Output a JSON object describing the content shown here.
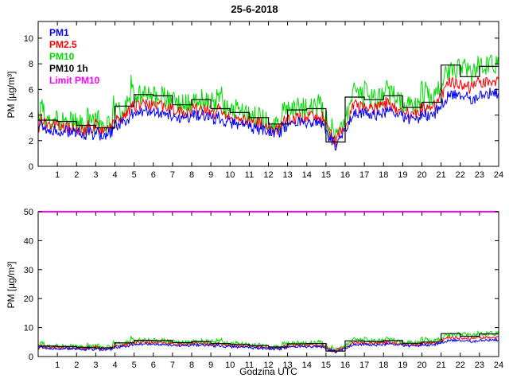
{
  "chart_data": {
    "type": "line",
    "title": "25-6-2018",
    "xlabel": "Godzina UTC",
    "ylabel": "PM [µg/m³]",
    "x_range": [
      0,
      24
    ],
    "x_ticks": [
      1,
      2,
      3,
      4,
      5,
      6,
      7,
      8,
      9,
      10,
      11,
      12,
      13,
      14,
      15,
      16,
      17,
      18,
      19,
      20,
      21,
      22,
      23,
      24
    ],
    "grid": false,
    "legend_position": "top-left-inside",
    "legend": [
      {
        "name": "PM1",
        "color": "#0000ff"
      },
      {
        "name": "PM2.5",
        "color": "#ff0000"
      },
      {
        "name": "PM10",
        "color": "#00dd00"
      },
      {
        "name": "PM10 1h",
        "color": "#000000"
      },
      {
        "name": "Limit PM10",
        "color": "#ff00ff"
      }
    ],
    "limit": {
      "name": "Limit PM10",
      "color": "#ff00ff",
      "value": 50
    },
    "subplots": [
      {
        "name": "top",
        "ylim": [
          0,
          11.3
        ],
        "yticks": [
          0,
          2,
          4,
          6,
          8,
          10
        ],
        "show_xlabel": false
      },
      {
        "name": "bottom",
        "ylim": [
          0,
          50
        ],
        "yticks": [
          0,
          10,
          20,
          30,
          40,
          50
        ],
        "show_xlabel": true
      }
    ],
    "series": [
      {
        "name": "PM1",
        "color": "#0000ff",
        "noise": 0.45,
        "spike": 0.6,
        "hourly_mean": [
          2.8,
          2.7,
          2.5,
          2.3,
          3.6,
          4.3,
          4.2,
          3.7,
          4.0,
          3.5,
          3.2,
          2.9,
          2.6,
          3.4,
          3.5,
          1.5,
          4.1,
          4.0,
          4.2,
          3.6,
          3.8,
          5.7,
          5.1,
          5.7
        ]
      },
      {
        "name": "PM2.5",
        "color": "#ff0000",
        "noise": 0.5,
        "spike": 0.9,
        "hourly_mean": [
          3.1,
          3.0,
          2.8,
          2.6,
          4.0,
          4.8,
          4.7,
          4.1,
          4.5,
          3.9,
          3.6,
          3.3,
          2.9,
          3.8,
          3.9,
          1.7,
          4.6,
          4.5,
          4.7,
          4.0,
          4.3,
          6.7,
          6.0,
          6.7
        ]
      },
      {
        "name": "PM10",
        "color": "#00dd00",
        "noise": 0.85,
        "spike": 1.9,
        "hourly_mean": [
          3.6,
          3.5,
          3.2,
          3.0,
          4.7,
          5.6,
          5.5,
          4.8,
          5.2,
          4.5,
          4.2,
          3.8,
          3.3,
          4.4,
          4.5,
          1.9,
          5.4,
          5.2,
          5.5,
          4.6,
          5.0,
          7.9,
          7.0,
          7.8
        ]
      }
    ],
    "hourly_average_series": {
      "name": "PM10 1h",
      "color": "#000000",
      "values": [
        3.6,
        3.5,
        3.2,
        3.0,
        4.7,
        5.6,
        5.5,
        4.8,
        5.2,
        4.5,
        4.2,
        3.8,
        3.3,
        4.4,
        4.5,
        1.9,
        5.4,
        5.2,
        5.5,
        4.6,
        5.0,
        7.9,
        7.0,
        7.8
      ]
    }
  }
}
